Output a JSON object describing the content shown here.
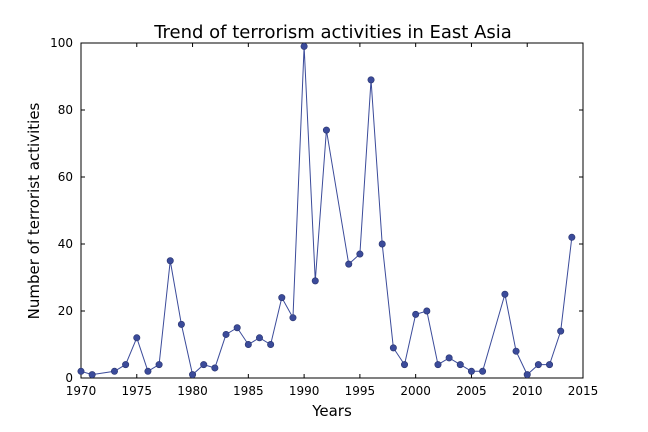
{
  "chart_data": {
    "type": "line",
    "title": "Trend of terrorism activities in East Asia",
    "xlabel": "Years",
    "ylabel": "Number of terrorist activities",
    "xlim": [
      1970,
      2015
    ],
    "ylim": [
      0,
      100
    ],
    "x_ticks": [
      1970,
      1975,
      1980,
      1985,
      1990,
      1995,
      2000,
      2005,
      2010,
      2015
    ],
    "y_ticks": [
      0,
      20,
      40,
      60,
      80,
      100
    ],
    "grid": false,
    "line_color": "#3b4b9a",
    "marker_color": "#3b4b9a",
    "series": [
      {
        "x": [
          1970,
          1971,
          1973,
          1974,
          1975,
          1976,
          1977,
          1978,
          1979,
          1980,
          1981,
          1982,
          1983,
          1984,
          1985,
          1986,
          1987,
          1988,
          1989,
          1990,
          1991,
          1992,
          1994,
          1995,
          1996,
          1997,
          1998,
          1999,
          2000,
          2001,
          2002,
          2003,
          2004,
          2005,
          2006,
          2008,
          2009,
          2010,
          2011,
          2012,
          2013,
          2014
        ],
        "values": [
          2,
          1,
          2,
          4,
          12,
          2,
          4,
          35,
          16,
          1,
          4,
          3,
          13,
          15,
          10,
          12,
          10,
          24,
          18,
          99,
          29,
          74,
          34,
          37,
          89,
          40,
          9,
          4,
          19,
          20,
          4,
          6,
          4,
          2,
          2,
          25,
          8,
          1,
          4,
          4,
          14,
          42
        ]
      }
    ]
  }
}
